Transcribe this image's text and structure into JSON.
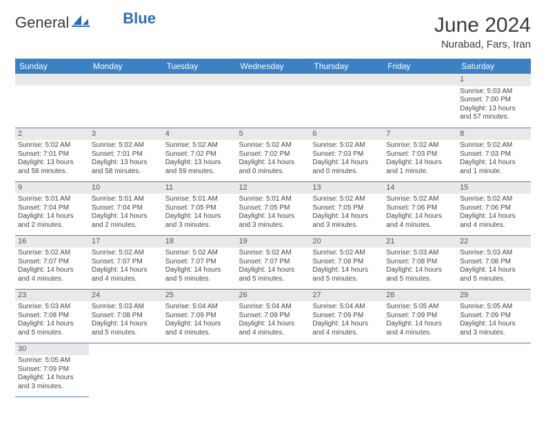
{
  "logo": {
    "general": "General",
    "blue": "Blue"
  },
  "title": "June 2024",
  "location": "Nurabad, Fars, Iran",
  "colors": {
    "header_bg": "#3b82c4",
    "header_text": "#ffffff",
    "daynum_bg": "#e9e9e9",
    "row_border": "#4a7fb5",
    "text": "#444444"
  },
  "weekdays": [
    "Sunday",
    "Monday",
    "Tuesday",
    "Wednesday",
    "Thursday",
    "Friday",
    "Saturday"
  ],
  "weeks": [
    [
      {
        "blank": true
      },
      {
        "blank": true
      },
      {
        "blank": true
      },
      {
        "blank": true
      },
      {
        "blank": true
      },
      {
        "blank": true
      },
      {
        "day": "1",
        "sunrise": "Sunrise: 5:03 AM",
        "sunset": "Sunset: 7:00 PM",
        "daylight": "Daylight: 13 hours and 57 minutes."
      }
    ],
    [
      {
        "day": "2",
        "sunrise": "Sunrise: 5:02 AM",
        "sunset": "Sunset: 7:01 PM",
        "daylight": "Daylight: 13 hours and 58 minutes."
      },
      {
        "day": "3",
        "sunrise": "Sunrise: 5:02 AM",
        "sunset": "Sunset: 7:01 PM",
        "daylight": "Daylight: 13 hours and 58 minutes."
      },
      {
        "day": "4",
        "sunrise": "Sunrise: 5:02 AM",
        "sunset": "Sunset: 7:02 PM",
        "daylight": "Daylight: 13 hours and 59 minutes."
      },
      {
        "day": "5",
        "sunrise": "Sunrise: 5:02 AM",
        "sunset": "Sunset: 7:02 PM",
        "daylight": "Daylight: 14 hours and 0 minutes."
      },
      {
        "day": "6",
        "sunrise": "Sunrise: 5:02 AM",
        "sunset": "Sunset: 7:03 PM",
        "daylight": "Daylight: 14 hours and 0 minutes."
      },
      {
        "day": "7",
        "sunrise": "Sunrise: 5:02 AM",
        "sunset": "Sunset: 7:03 PM",
        "daylight": "Daylight: 14 hours and 1 minute."
      },
      {
        "day": "8",
        "sunrise": "Sunrise: 5:02 AM",
        "sunset": "Sunset: 7:03 PM",
        "daylight": "Daylight: 14 hours and 1 minute."
      }
    ],
    [
      {
        "day": "9",
        "sunrise": "Sunrise: 5:01 AM",
        "sunset": "Sunset: 7:04 PM",
        "daylight": "Daylight: 14 hours and 2 minutes."
      },
      {
        "day": "10",
        "sunrise": "Sunrise: 5:01 AM",
        "sunset": "Sunset: 7:04 PM",
        "daylight": "Daylight: 14 hours and 2 minutes."
      },
      {
        "day": "11",
        "sunrise": "Sunrise: 5:01 AM",
        "sunset": "Sunset: 7:05 PM",
        "daylight": "Daylight: 14 hours and 3 minutes."
      },
      {
        "day": "12",
        "sunrise": "Sunrise: 5:01 AM",
        "sunset": "Sunset: 7:05 PM",
        "daylight": "Daylight: 14 hours and 3 minutes."
      },
      {
        "day": "13",
        "sunrise": "Sunrise: 5:02 AM",
        "sunset": "Sunset: 7:05 PM",
        "daylight": "Daylight: 14 hours and 3 minutes."
      },
      {
        "day": "14",
        "sunrise": "Sunrise: 5:02 AM",
        "sunset": "Sunset: 7:06 PM",
        "daylight": "Daylight: 14 hours and 4 minutes."
      },
      {
        "day": "15",
        "sunrise": "Sunrise: 5:02 AM",
        "sunset": "Sunset: 7:06 PM",
        "daylight": "Daylight: 14 hours and 4 minutes."
      }
    ],
    [
      {
        "day": "16",
        "sunrise": "Sunrise: 5:02 AM",
        "sunset": "Sunset: 7:07 PM",
        "daylight": "Daylight: 14 hours and 4 minutes."
      },
      {
        "day": "17",
        "sunrise": "Sunrise: 5:02 AM",
        "sunset": "Sunset: 7:07 PM",
        "daylight": "Daylight: 14 hours and 4 minutes."
      },
      {
        "day": "18",
        "sunrise": "Sunrise: 5:02 AM",
        "sunset": "Sunset: 7:07 PM",
        "daylight": "Daylight: 14 hours and 5 minutes."
      },
      {
        "day": "19",
        "sunrise": "Sunrise: 5:02 AM",
        "sunset": "Sunset: 7:07 PM",
        "daylight": "Daylight: 14 hours and 5 minutes."
      },
      {
        "day": "20",
        "sunrise": "Sunrise: 5:02 AM",
        "sunset": "Sunset: 7:08 PM",
        "daylight": "Daylight: 14 hours and 5 minutes."
      },
      {
        "day": "21",
        "sunrise": "Sunrise: 5:03 AM",
        "sunset": "Sunset: 7:08 PM",
        "daylight": "Daylight: 14 hours and 5 minutes."
      },
      {
        "day": "22",
        "sunrise": "Sunrise: 5:03 AM",
        "sunset": "Sunset: 7:08 PM",
        "daylight": "Daylight: 14 hours and 5 minutes."
      }
    ],
    [
      {
        "day": "23",
        "sunrise": "Sunrise: 5:03 AM",
        "sunset": "Sunset: 7:08 PM",
        "daylight": "Daylight: 14 hours and 5 minutes."
      },
      {
        "day": "24",
        "sunrise": "Sunrise: 5:03 AM",
        "sunset": "Sunset: 7:08 PM",
        "daylight": "Daylight: 14 hours and 5 minutes."
      },
      {
        "day": "25",
        "sunrise": "Sunrise: 5:04 AM",
        "sunset": "Sunset: 7:09 PM",
        "daylight": "Daylight: 14 hours and 4 minutes."
      },
      {
        "day": "26",
        "sunrise": "Sunrise: 5:04 AM",
        "sunset": "Sunset: 7:09 PM",
        "daylight": "Daylight: 14 hours and 4 minutes."
      },
      {
        "day": "27",
        "sunrise": "Sunrise: 5:04 AM",
        "sunset": "Sunset: 7:09 PM",
        "daylight": "Daylight: 14 hours and 4 minutes."
      },
      {
        "day": "28",
        "sunrise": "Sunrise: 5:05 AM",
        "sunset": "Sunset: 7:09 PM",
        "daylight": "Daylight: 14 hours and 4 minutes."
      },
      {
        "day": "29",
        "sunrise": "Sunrise: 5:05 AM",
        "sunset": "Sunset: 7:09 PM",
        "daylight": "Daylight: 14 hours and 3 minutes."
      }
    ],
    [
      {
        "day": "30",
        "sunrise": "Sunrise: 5:05 AM",
        "sunset": "Sunset: 7:09 PM",
        "daylight": "Daylight: 14 hours and 3 minutes."
      },
      {
        "empty": true
      },
      {
        "empty": true
      },
      {
        "empty": true
      },
      {
        "empty": true
      },
      {
        "empty": true
      },
      {
        "empty": true
      }
    ]
  ]
}
